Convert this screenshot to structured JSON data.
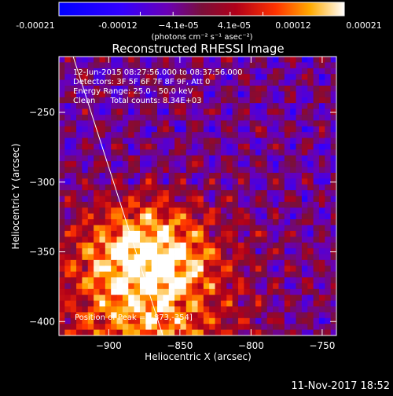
{
  "chart_data": {
    "type": "heatmap",
    "title": "Reconstructed RHESSI Image",
    "xlabel": "Heliocentric X (arcsec)",
    "ylabel": "Heliocentric Y (arcsec)",
    "xlim": [
      -935,
      -740
    ],
    "ylim": [
      -410,
      -210
    ],
    "x_ticks": [
      -900,
      -850,
      -800,
      -750
    ],
    "y_ticks": [
      -250,
      -300,
      -350,
      -400
    ],
    "x_tick_labels": [
      "−900",
      "−850",
      "−800",
      "−750"
    ],
    "y_tick_labels": [
      "−250",
      "−300",
      "−350",
      "−400"
    ],
    "colorbar": {
      "min": -0.00021,
      "max": 0.00021,
      "tick_labels": [
        "-0.00021",
        "-0.00012",
        "−4.1e-05",
        "4.1e-05",
        "0.00012",
        "0.00021"
      ],
      "unit_label": "(photons cm⁻² s⁻¹ asec⁻²)"
    },
    "annotations": [
      "12-Jun-2015 08:27:56.000 to 08:37:56.000",
      "Detectors: 3F 5F 6F 7F 8F 9F, Att 0",
      "Energy Range: 25.0 - 50.0 keV",
      "Clean      Total counts: 8.34E+03"
    ],
    "peak": {
      "x": -873,
      "y": -354,
      "label": "Position of Peak = [-873,-354]"
    },
    "limb_line": [
      [
        -925,
        -210
      ],
      [
        -862,
        -410
      ]
    ],
    "grid": false,
    "colormap": "rhessi-blue-purple-red-yellow-white"
  },
  "footer": {
    "timestamp": "11-Nov-2017 18:52"
  }
}
